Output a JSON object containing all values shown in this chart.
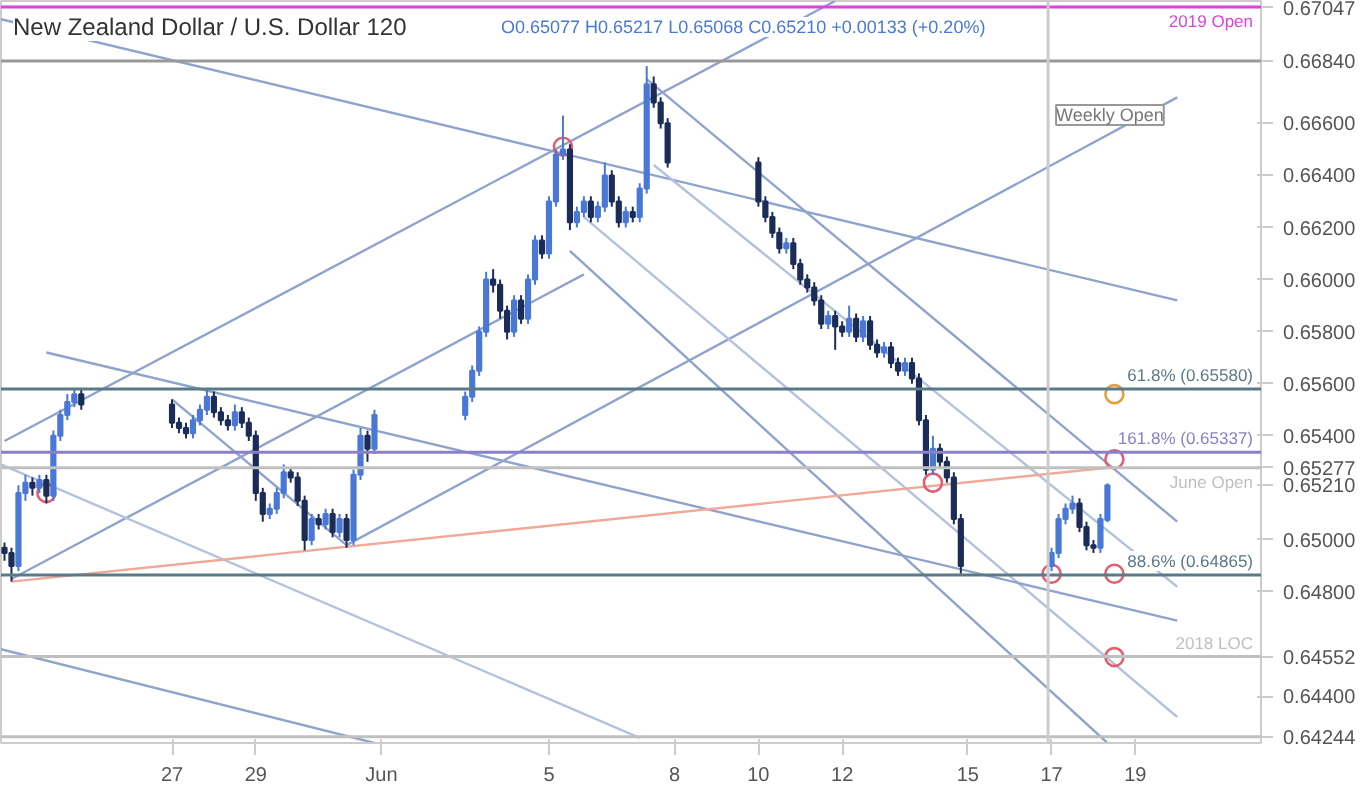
{
  "chart_data": {
    "type": "candlestick",
    "title": "New Zealand Dollar / U.S. Dollar  120",
    "subtitle": "O0.65077  H0.65217  L0.65068  C0.65210  +0.00133 (+0.20%)",
    "x": [
      "2019-05-23T00:00",
      "2019-05-23T04:00",
      "2019-05-23T08:00",
      "2019-05-23T12:00",
      "2019-05-23T16:00",
      "2019-05-23T20:00",
      "2019-05-24T00:00",
      "2019-05-24T04:00",
      "2019-05-24T08:00",
      "2019-05-24T12:00",
      "2019-05-24T16:00",
      "2019-05-24T20:00",
      "2019-05-27T00:00",
      "2019-05-27T04:00",
      "2019-05-27T08:00",
      "2019-05-27T12:00",
      "2019-05-27T16:00",
      "2019-05-27T20:00",
      "2019-05-28T00:00",
      "2019-05-28T04:00",
      "2019-05-28T08:00",
      "2019-05-28T12:00",
      "2019-05-28T16:00",
      "2019-05-28T20:00",
      "2019-05-29T00:00",
      "2019-05-29T04:00",
      "2019-05-29T08:00",
      "2019-05-29T12:00",
      "2019-05-29T16:00",
      "2019-05-29T20:00",
      "2019-05-30T00:00",
      "2019-05-30T04:00",
      "2019-05-30T08:00",
      "2019-05-30T12:00",
      "2019-05-30T16:00",
      "2019-05-30T20:00",
      "2019-05-31T00:00",
      "2019-05-31T04:00",
      "2019-05-31T08:00",
      "2019-05-31T12:00",
      "2019-05-31T16:00",
      "2019-05-31T20:00",
      "2019-06-03T00:00",
      "2019-06-03T04:00",
      "2019-06-03T08:00",
      "2019-06-03T12:00",
      "2019-06-03T16:00",
      "2019-06-03T20:00",
      "2019-06-04T00:00",
      "2019-06-04T04:00",
      "2019-06-04T08:00",
      "2019-06-04T12:00",
      "2019-06-04T16:00",
      "2019-06-04T20:00",
      "2019-06-05T00:00",
      "2019-06-05T04:00",
      "2019-06-05T08:00",
      "2019-06-05T12:00",
      "2019-06-05T16:00",
      "2019-06-05T20:00",
      "2019-06-06T00:00",
      "2019-06-06T04:00",
      "2019-06-06T08:00",
      "2019-06-06T12:00",
      "2019-06-06T16:00",
      "2019-06-06T20:00",
      "2019-06-07T00:00",
      "2019-06-07T04:00",
      "2019-06-07T08:00",
      "2019-06-07T12:00",
      "2019-06-07T16:00",
      "2019-06-07T20:00",
      "2019-06-10T00:00",
      "2019-06-10T04:00",
      "2019-06-10T08:00",
      "2019-06-10T12:00",
      "2019-06-10T16:00",
      "2019-06-10T20:00",
      "2019-06-11T00:00",
      "2019-06-11T04:00",
      "2019-06-11T08:00",
      "2019-06-11T12:00",
      "2019-06-11T16:00",
      "2019-06-11T20:00",
      "2019-06-12T00:00",
      "2019-06-12T04:00",
      "2019-06-12T08:00",
      "2019-06-12T12:00",
      "2019-06-12T16:00",
      "2019-06-12T20:00",
      "2019-06-13T00:00",
      "2019-06-13T04:00",
      "2019-06-13T08:00",
      "2019-06-13T12:00",
      "2019-06-13T16:00",
      "2019-06-13T20:00",
      "2019-06-14T00:00",
      "2019-06-14T04:00",
      "2019-06-14T08:00",
      "2019-06-14T12:00",
      "2019-06-14T16:00",
      "2019-06-14T20:00",
      "2019-06-17T00:00",
      "2019-06-17T04:00",
      "2019-06-17T08:00",
      "2019-06-17T12:00",
      "2019-06-17T16:00",
      "2019-06-17T20:00",
      "2019-06-18T00:00",
      "2019-06-18T04:00",
      "2019-06-18T08:00"
    ],
    "ohlc": [
      [
        0.6497,
        0.6499,
        0.6492,
        0.6495
      ],
      [
        0.6495,
        0.6497,
        0.6484,
        0.649
      ],
      [
        0.649,
        0.6521,
        0.6488,
        0.6518
      ],
      [
        0.6518,
        0.6525,
        0.6515,
        0.6522
      ],
      [
        0.6522,
        0.6524,
        0.6517,
        0.652
      ],
      [
        0.652,
        0.6525,
        0.6518,
        0.6523
      ],
      [
        0.6523,
        0.6525,
        0.6514,
        0.6517
      ],
      [
        0.6517,
        0.6542,
        0.6515,
        0.654
      ],
      [
        0.654,
        0.655,
        0.6538,
        0.6548
      ],
      [
        0.6548,
        0.6556,
        0.6546,
        0.6553
      ],
      [
        0.6553,
        0.6558,
        0.6551,
        0.6556
      ],
      [
        0.6556,
        0.6558,
        0.655,
        0.6552
      ],
      [
        0.6552,
        0.6554,
        0.6543,
        0.6545
      ],
      [
        0.6545,
        0.6547,
        0.6541,
        0.6543
      ],
      [
        0.6543,
        0.6545,
        0.6539,
        0.6541
      ],
      [
        0.6541,
        0.6548,
        0.6539,
        0.6546
      ],
      [
        0.6546,
        0.6552,
        0.6544,
        0.655
      ],
      [
        0.655,
        0.6558,
        0.6548,
        0.6555
      ],
      [
        0.6555,
        0.6557,
        0.6547,
        0.6549
      ],
      [
        0.6549,
        0.6551,
        0.6544,
        0.6546
      ],
      [
        0.6546,
        0.6548,
        0.6542,
        0.6544
      ],
      [
        0.6544,
        0.6552,
        0.6542,
        0.6549
      ],
      [
        0.6549,
        0.6551,
        0.6543,
        0.6545
      ],
      [
        0.6545,
        0.6547,
        0.6538,
        0.654
      ],
      [
        0.654,
        0.6542,
        0.6515,
        0.6518
      ],
      [
        0.6518,
        0.652,
        0.6507,
        0.651
      ],
      [
        0.651,
        0.6514,
        0.6508,
        0.6512
      ],
      [
        0.6512,
        0.652,
        0.651,
        0.6518
      ],
      [
        0.6518,
        0.6529,
        0.6516,
        0.6526
      ],
      [
        0.6526,
        0.6528,
        0.6522,
        0.6524
      ],
      [
        0.6524,
        0.6526,
        0.6513,
        0.6515
      ],
      [
        0.6515,
        0.6517,
        0.6496,
        0.65
      ],
      [
        0.65,
        0.651,
        0.6498,
        0.6508
      ],
      [
        0.6508,
        0.651,
        0.6504,
        0.6506
      ],
      [
        0.6506,
        0.6512,
        0.6504,
        0.651
      ],
      [
        0.651,
        0.6512,
        0.6501,
        0.6503
      ],
      [
        0.6503,
        0.651,
        0.6501,
        0.6508
      ],
      [
        0.6508,
        0.651,
        0.6497,
        0.65
      ],
      [
        0.65,
        0.6527,
        0.6498,
        0.6525
      ],
      [
        0.6525,
        0.6543,
        0.6523,
        0.654
      ],
      [
        0.654,
        0.6542,
        0.653,
        0.6535
      ],
      [
        0.6535,
        0.655,
        0.6533,
        0.6548
      ],
      [
        0.6548,
        0.6557,
        0.6546,
        0.6555
      ],
      [
        0.6555,
        0.6567,
        0.6553,
        0.6565
      ],
      [
        0.6565,
        0.6582,
        0.6563,
        0.658
      ],
      [
        0.658,
        0.6603,
        0.6578,
        0.66
      ],
      [
        0.66,
        0.6604,
        0.6595,
        0.6598
      ],
      [
        0.6598,
        0.66,
        0.6585,
        0.6588
      ],
      [
        0.6588,
        0.659,
        0.6577,
        0.658
      ],
      [
        0.658,
        0.6594,
        0.6578,
        0.6592
      ],
      [
        0.6592,
        0.6594,
        0.6583,
        0.6585
      ],
      [
        0.6585,
        0.6602,
        0.6583,
        0.66
      ],
      [
        0.66,
        0.6617,
        0.6598,
        0.6615
      ],
      [
        0.6615,
        0.6617,
        0.6608,
        0.661
      ],
      [
        0.661,
        0.6632,
        0.6608,
        0.663
      ],
      [
        0.663,
        0.665,
        0.6628,
        0.6648
      ],
      [
        0.6648,
        0.6663,
        0.6646,
        0.665
      ],
      [
        0.665,
        0.6652,
        0.6619,
        0.6622
      ],
      [
        0.6622,
        0.6628,
        0.662,
        0.6626
      ],
      [
        0.6626,
        0.6632,
        0.6624,
        0.663
      ],
      [
        0.663,
        0.6632,
        0.6622,
        0.6624
      ],
      [
        0.6624,
        0.663,
        0.6622,
        0.6628
      ],
      [
        0.6628,
        0.6645,
        0.6626,
        0.664
      ],
      [
        0.664,
        0.6642,
        0.6628,
        0.663
      ],
      [
        0.663,
        0.6632,
        0.662,
        0.6622
      ],
      [
        0.6622,
        0.6628,
        0.662,
        0.6626
      ],
      [
        0.6626,
        0.6628,
        0.6622,
        0.6624
      ],
      [
        0.6624,
        0.6637,
        0.6622,
        0.6635
      ],
      [
        0.6635,
        0.6682,
        0.6633,
        0.6675
      ],
      [
        0.6675,
        0.6678,
        0.6666,
        0.6668
      ],
      [
        0.6668,
        0.667,
        0.6658,
        0.666
      ],
      [
        0.666,
        0.6662,
        0.6643,
        0.6645
      ],
      [
        0.6645,
        0.6647,
        0.6628,
        0.663
      ],
      [
        0.663,
        0.6632,
        0.6622,
        0.6624
      ],
      [
        0.6624,
        0.6626,
        0.6616,
        0.6618
      ],
      [
        0.6618,
        0.662,
        0.661,
        0.6612
      ],
      [
        0.6612,
        0.6616,
        0.661,
        0.6614
      ],
      [
        0.6614,
        0.6616,
        0.6604,
        0.6606
      ],
      [
        0.6606,
        0.6608,
        0.6598,
        0.66
      ],
      [
        0.66,
        0.6602,
        0.6595,
        0.6597
      ],
      [
        0.6597,
        0.6599,
        0.659,
        0.6592
      ],
      [
        0.6592,
        0.6594,
        0.6581,
        0.6583
      ],
      [
        0.6583,
        0.6588,
        0.6581,
        0.6586
      ],
      [
        0.6586,
        0.6588,
        0.6573,
        0.6582
      ],
      [
        0.6582,
        0.6584,
        0.6578,
        0.658
      ],
      [
        0.658,
        0.659,
        0.6578,
        0.6585
      ],
      [
        0.6585,
        0.6587,
        0.6576,
        0.6578
      ],
      [
        0.6578,
        0.6586,
        0.6576,
        0.6584
      ],
      [
        0.6584,
        0.6586,
        0.6573,
        0.6575
      ],
      [
        0.6575,
        0.6577,
        0.657,
        0.6572
      ],
      [
        0.6572,
        0.6576,
        0.657,
        0.6574
      ],
      [
        0.6574,
        0.6576,
        0.6566,
        0.6568
      ],
      [
        0.6568,
        0.657,
        0.6563,
        0.6565
      ],
      [
        0.6565,
        0.657,
        0.6563,
        0.6568
      ],
      [
        0.6568,
        0.657,
        0.656,
        0.6562
      ],
      [
        0.6562,
        0.6564,
        0.6544,
        0.6546
      ],
      [
        0.6546,
        0.6548,
        0.6525,
        0.6527
      ],
      [
        0.6527,
        0.654,
        0.6525,
        0.6535
      ],
      [
        0.6535,
        0.6537,
        0.6528,
        0.653
      ],
      [
        0.653,
        0.6532,
        0.6522,
        0.6524
      ],
      [
        0.6524,
        0.6526,
        0.6506,
        0.6508
      ],
      [
        0.6508,
        0.651,
        0.6487,
        0.649
      ],
      [
        0.649,
        0.6497,
        0.6488,
        0.6495
      ],
      [
        0.6495,
        0.651,
        0.6493,
        0.6508
      ],
      [
        0.6508,
        0.6514,
        0.6506,
        0.6512
      ],
      [
        0.6512,
        0.6517,
        0.651,
        0.6514
      ],
      [
        0.6514,
        0.6516,
        0.6503,
        0.6505
      ],
      [
        0.6505,
        0.6507,
        0.6496,
        0.6498
      ],
      [
        0.6498,
        0.65,
        0.6495,
        0.6497
      ],
      [
        0.6497,
        0.651,
        0.6495,
        0.6508
      ],
      [
        0.65077,
        0.65217,
        0.65068,
        0.6521
      ]
    ],
    "series": [
      {
        "type": "line",
        "color": "#8fa3cc",
        "x": [
          "2019-05-22T22:00",
          "2019-06-20T00:00"
        ],
        "values": [
          0.67,
          0.6592
        ]
      },
      {
        "type": "line",
        "color": "#8fa3cc",
        "x": [
          "2019-05-23T00:00",
          "2019-06-11T20:00"
        ],
        "values": [
          0.6538,
          0.6707
        ]
      },
      {
        "type": "line",
        "color": "#8fa3cc",
        "x": [
          "2019-05-23T04:00",
          "2019-06-05T20:00"
        ],
        "values": [
          0.6485,
          0.6602
        ]
      },
      {
        "type": "line",
        "color": "#8fa3cc",
        "x": [
          "2019-05-31T04:00",
          "2019-06-20T00:00"
        ],
        "values": [
          0.6498,
          0.667
        ]
      },
      {
        "type": "line",
        "color": "#8fa3cc",
        "x": [
          "2019-06-07T08:00",
          "2019-06-20T00:00"
        ],
        "values": [
          0.6677,
          0.6507
        ]
      },
      {
        "type": "line",
        "color": "#8fa3cc",
        "x": [
          "2019-06-05T12:00",
          "2019-06-18T08:00"
        ],
        "values": [
          0.6611,
          0.6422
        ]
      },
      {
        "type": "line",
        "color": "#b5c2dd",
        "x": [
          "2019-06-07T12:00",
          "2019-06-20T00:00"
        ],
        "values": [
          0.6644,
          0.6482
        ]
      },
      {
        "type": "line",
        "color": "#b5c2dd",
        "x": [
          "2019-06-05T20:00",
          "2019-06-20T00:00"
        ],
        "values": [
          0.6624,
          0.6432
        ]
      },
      {
        "type": "line",
        "color": "#8fa3cc",
        "x": [
          "2019-05-24T00:00",
          "2019-06-20T00:00"
        ],
        "values": [
          0.6572,
          0.6469
        ]
      },
      {
        "type": "line",
        "color": "#b5c2dd",
        "x": [
          "2019-05-22T22:00",
          "2019-06-07T04:00"
        ],
        "values": [
          0.6529,
          0.6424
        ]
      },
      {
        "type": "line",
        "color": "#8fa3cc",
        "x": [
          "2019-05-22T22:00",
          "2019-05-31T20:00"
        ],
        "values": [
          0.6458,
          0.6422
        ]
      },
      {
        "type": "line",
        "color": "#8fa3cc",
        "x": [
          "2019-05-27T00:00",
          "2019-05-31T04:00"
        ],
        "values": [
          0.6554,
          0.6498
        ]
      },
      {
        "type": "line",
        "color": "#f0a898",
        "x": [
          "2019-05-23T04:00",
          "2019-06-18T12:00"
        ],
        "values": [
          0.6484,
          0.6528
        ]
      },
      {
        "type": "scatter",
        "marker": "circle",
        "color": "#e06070",
        "x": [
          "2019-05-24T00:00",
          "2019-06-05T08:00",
          "2019-06-14T04:00",
          "2019-06-17T00:00",
          "2019-06-18T12:00",
          "2019-06-18T12:00",
          "2019-06-18T12:00"
        ],
        "values": [
          0.6518,
          0.6651,
          0.6522,
          0.6487,
          0.6487,
          0.6455,
          0.6531
        ]
      },
      {
        "type": "scatter",
        "marker": "circle",
        "color": "#e0a040",
        "x": [
          "2019-06-18T12:00"
        ],
        "values": [
          0.6556
        ]
      }
    ],
    "ref_lines": [
      {
        "axis": "y",
        "value": 0.67047,
        "label": "2019 Open",
        "color": "#e040e0"
      },
      {
        "axis": "y",
        "value": 0.6684,
        "label": null,
        "color": "#999999"
      },
      {
        "axis": "y",
        "value": 0.6558,
        "label": "61.8% (0.65580)",
        "color": "#5a7a88"
      },
      {
        "axis": "y",
        "value": 0.65337,
        "label": "161.8% (0.65337)",
        "color": "#8a80c8"
      },
      {
        "axis": "y",
        "value": 0.65277,
        "label": "June Open",
        "color": "#c0c0c0"
      },
      {
        "axis": "y",
        "value": 0.64865,
        "label": "88.6% (0.64865)",
        "color": "#5a7a88"
      },
      {
        "axis": "y",
        "value": 0.64552,
        "label": "2018 LOC",
        "color": "#c0c0c0"
      },
      {
        "axis": "y",
        "value": 0.64244,
        "label": null,
        "color": "#c0c0c0"
      },
      {
        "axis": "x",
        "value": "2019-06-16T22:00",
        "label": "Weekly Open",
        "color": "#cccccc"
      }
    ],
    "xlim": [
      "2019-05-22T22:00",
      "2019-06-22T00:00"
    ],
    "ylim": [
      0.6422,
      0.6707
    ],
    "xticks": [
      {
        "value": "2019-05-27",
        "label": "27"
      },
      {
        "value": "2019-05-29",
        "label": "29"
      },
      {
        "value": "2019-06-01",
        "label": "Jun"
      },
      {
        "value": "2019-06-05",
        "label": "5"
      },
      {
        "value": "2019-06-08",
        "label": "8"
      },
      {
        "value": "2019-06-10",
        "label": "10"
      },
      {
        "value": "2019-06-12",
        "label": "12"
      },
      {
        "value": "2019-06-15",
        "label": "15"
      },
      {
        "value": "2019-06-17",
        "label": "17"
      },
      {
        "value": "2019-06-19",
        "label": "19"
      }
    ],
    "yticks": [
      {
        "value": 0.67047,
        "label": "0.67047"
      },
      {
        "value": 0.6684,
        "label": "0.66840"
      },
      {
        "value": 0.666,
        "label": "0.66600"
      },
      {
        "value": 0.664,
        "label": "0.66400"
      },
      {
        "value": 0.662,
        "label": "0.66200"
      },
      {
        "value": 0.66,
        "label": "0.66000"
      },
      {
        "value": 0.658,
        "label": "0.65800"
      },
      {
        "value": 0.656,
        "label": "0.65600"
      },
      {
        "value": 0.654,
        "label": "0.65400"
      },
      {
        "value": 0.65277,
        "label": "0.65277"
      },
      {
        "value": 0.6521,
        "label": "0.65210"
      },
      {
        "value": 0.65,
        "label": "0.65000"
      },
      {
        "value": 0.648,
        "label": "0.64800"
      },
      {
        "value": 0.64552,
        "label": "0.64552"
      },
      {
        "value": 0.644,
        "label": "0.64400"
      },
      {
        "value": 0.64244,
        "label": "0.64244"
      }
    ]
  }
}
